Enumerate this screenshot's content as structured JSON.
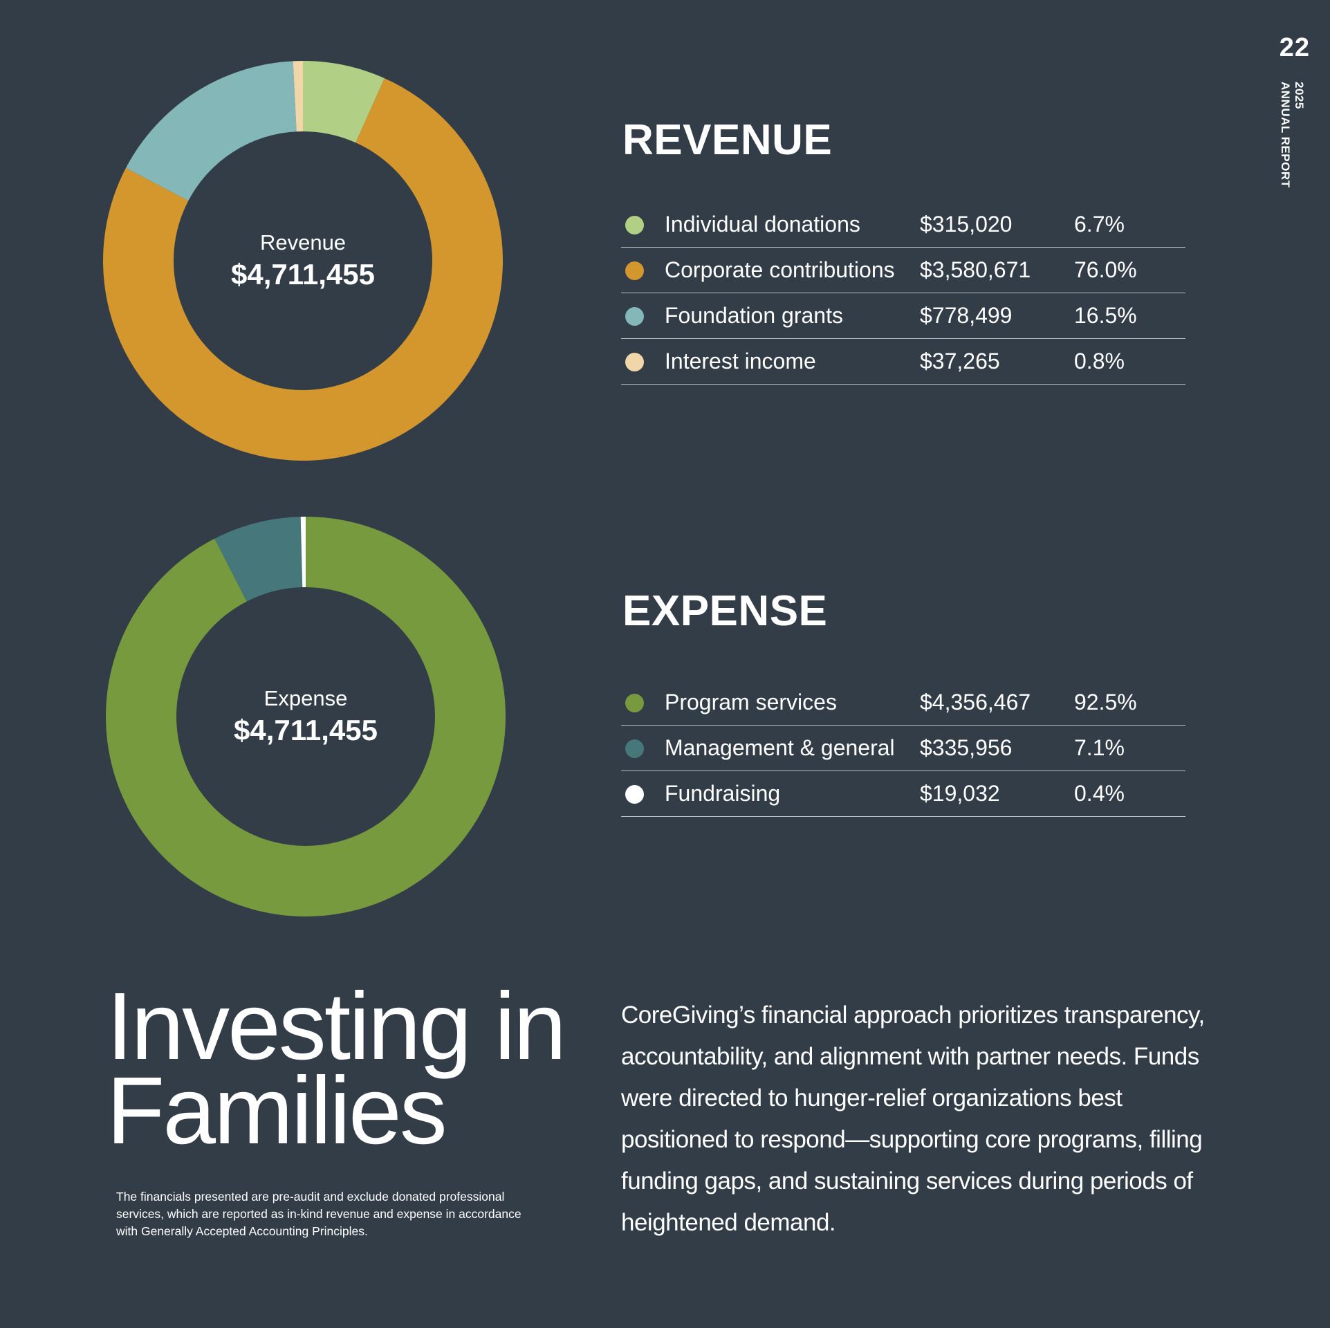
{
  "page": {
    "number": "22",
    "running_head_year": "2025",
    "running_head_title": "ANNUAL REPORT"
  },
  "revenue": {
    "heading": "REVENUE",
    "donut_label": "Revenue",
    "donut_total": "$4,711,455",
    "rows": [
      {
        "label": "Individual donations",
        "amount": "$315,020",
        "percent": "6.7%",
        "color": "#b2cf86"
      },
      {
        "label": "Corporate contributions",
        "amount": "$3,580,671",
        "percent": "76.0%",
        "color": "#d4972e"
      },
      {
        "label": "Foundation grants",
        "amount": "$778,499",
        "percent": "16.5%",
        "color": "#84b8b8"
      },
      {
        "label": "Interest income",
        "amount": "$37,265",
        "percent": "0.8%",
        "color": "#f0d6a8"
      }
    ]
  },
  "expense": {
    "heading": "EXPENSE",
    "donut_label": "Expense",
    "donut_total": "$4,711,455",
    "rows": [
      {
        "label": "Program services",
        "amount": "$4,356,467",
        "percent": "92.5%",
        "color": "#789a3e"
      },
      {
        "label": "Management & general",
        "amount": "$335,956",
        "percent": "7.1%",
        "color": "#46777a"
      },
      {
        "label": "Fundraising",
        "amount": "$19,032",
        "percent": "0.4%",
        "color": "#ffffff"
      }
    ]
  },
  "headline": {
    "line1": "Investing in",
    "line2": "Families"
  },
  "footnote": "The financials presented are pre-audit and exclude donated professional services, which are reported as in-kind revenue and expense in accordance with Generally Accepted Accounting Principles.",
  "body_text": "CoreGiving’s financial approach prioritizes transparency, accountability, and alignment with partner needs. Funds were directed to hunger-relief organizations best positioned to respond—supporting core programs, filling funding gaps, and sustaining services during periods of heightened demand.",
  "chart_data": [
    {
      "type": "pie",
      "title": "Revenue",
      "total": 4711455,
      "categories": [
        "Individual donations",
        "Corporate contributions",
        "Foundation grants",
        "Interest income"
      ],
      "values": [
        315020,
        3580671,
        778499,
        37265
      ],
      "percentages": [
        6.7,
        76.0,
        16.5,
        0.8
      ],
      "colors": [
        "#b2cf86",
        "#d4972e",
        "#84b8b8",
        "#f0d6a8"
      ]
    },
    {
      "type": "pie",
      "title": "Expense",
      "total": 4711455,
      "categories": [
        "Program services",
        "Management & general",
        "Fundraising"
      ],
      "values": [
        4356467,
        335956,
        19032
      ],
      "percentages": [
        92.5,
        7.1,
        0.4
      ],
      "colors": [
        "#789a3e",
        "#46777a",
        "#ffffff"
      ]
    }
  ]
}
